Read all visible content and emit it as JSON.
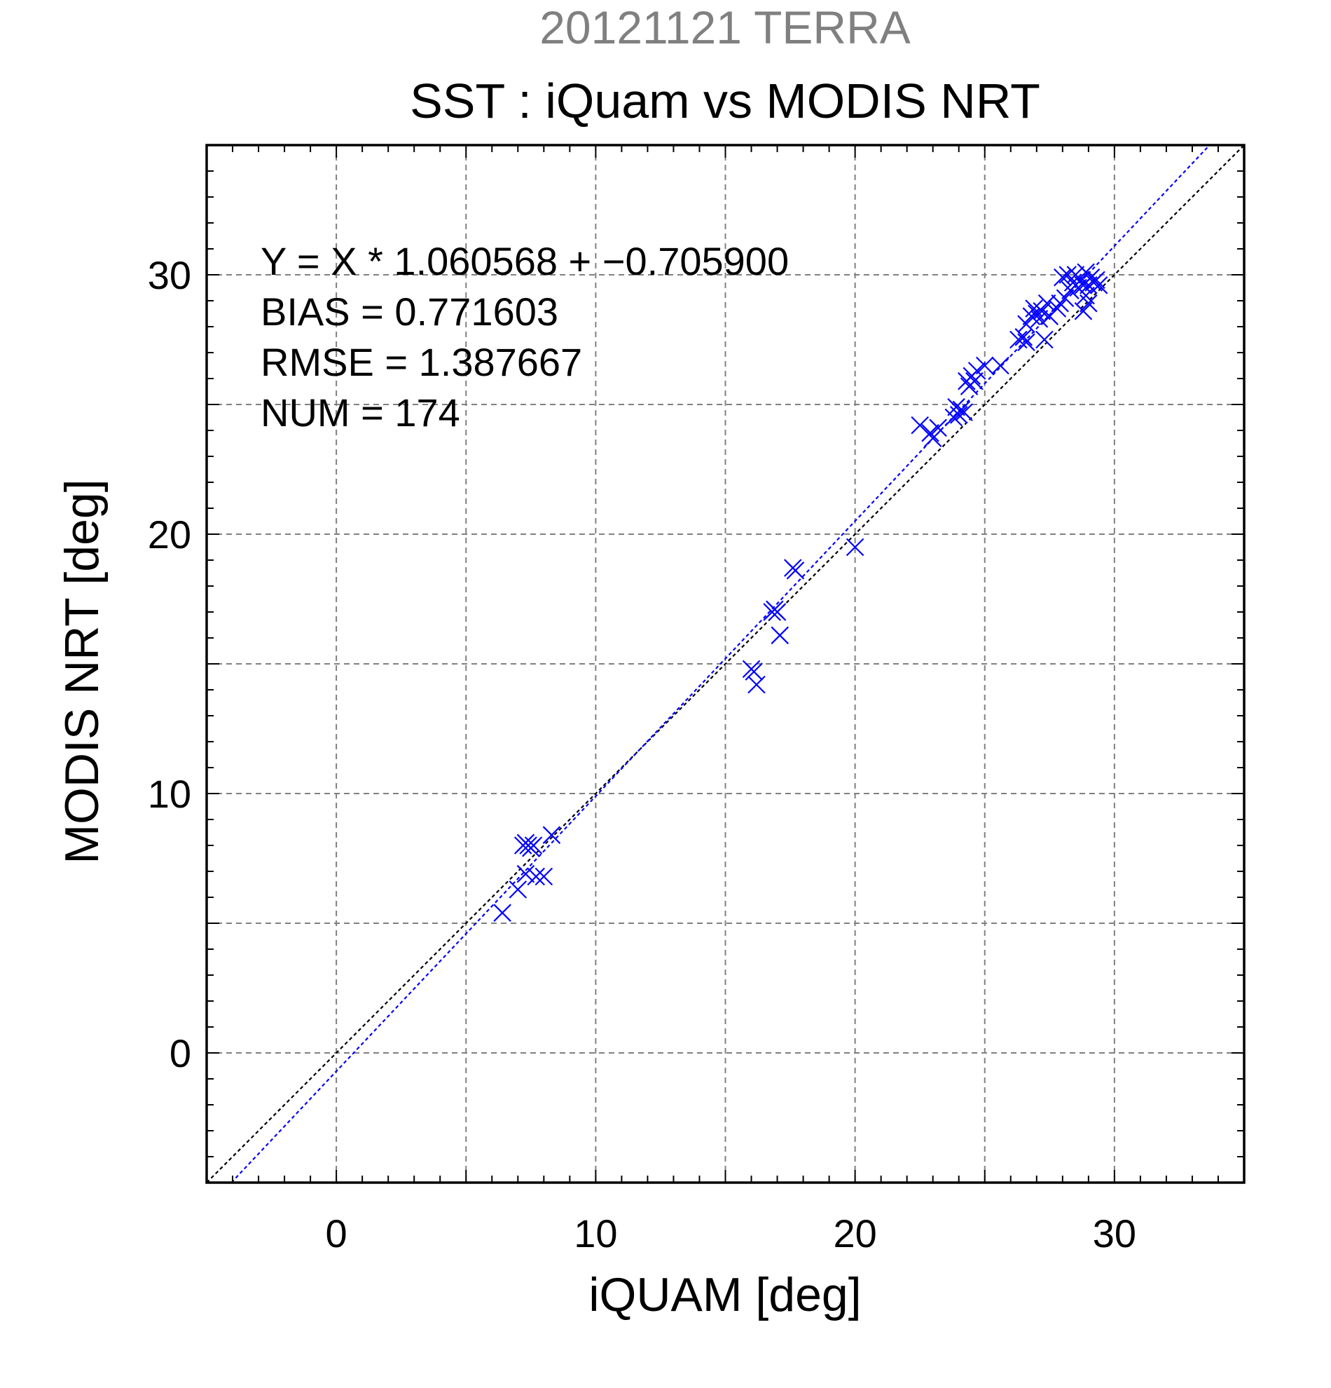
{
  "chart_data": {
    "type": "scatter",
    "title": "20121121 TERRA",
    "subtitle": "SST : iQuam vs MODIS NRT",
    "xlabel": "iQUAM [deg]",
    "ylabel": "MODIS NRT [deg]",
    "xlim": [
      -5,
      35
    ],
    "ylim": [
      -5,
      35
    ],
    "xticks": [
      0,
      10,
      20,
      30
    ],
    "yticks": [
      0,
      10,
      20,
      30
    ],
    "grid": true,
    "annotations": [
      "Y = X * 1.060568 + −0.705900",
      "BIAS = 0.771603",
      "RMSE = 1.387667",
      "NUM = 174"
    ],
    "regression": {
      "slope": 1.060568,
      "intercept": -0.7059
    },
    "colors": {
      "title": "#808080",
      "series": "#0000ff",
      "reference": "#000000",
      "grid": "#808080"
    },
    "series": [
      {
        "marker": "x",
        "points": [
          [
            6.4,
            5.4
          ],
          [
            7.0,
            6.3
          ],
          [
            7.3,
            6.9
          ],
          [
            7.7,
            6.8
          ],
          [
            8.0,
            6.8
          ],
          [
            7.2,
            8.0
          ],
          [
            7.3,
            8.1
          ],
          [
            7.4,
            8.0
          ],
          [
            7.5,
            7.9
          ],
          [
            7.6,
            8.0
          ],
          [
            8.3,
            8.4
          ],
          [
            16.0,
            14.8
          ],
          [
            16.1,
            14.7
          ],
          [
            16.2,
            14.2
          ],
          [
            16.8,
            17.0
          ],
          [
            16.9,
            17.1
          ],
          [
            17.0,
            17.0
          ],
          [
            17.1,
            16.1
          ],
          [
            17.6,
            18.7
          ],
          [
            17.7,
            18.6
          ],
          [
            20.0,
            19.5
          ],
          [
            22.5,
            24.2
          ],
          [
            22.9,
            23.9
          ],
          [
            23.0,
            23.7
          ],
          [
            23.2,
            24.1
          ],
          [
            23.8,
            24.5
          ],
          [
            23.9,
            24.9
          ],
          [
            24.0,
            24.6
          ],
          [
            24.1,
            24.8
          ],
          [
            24.2,
            24.7
          ],
          [
            24.3,
            25.9
          ],
          [
            24.4,
            25.7
          ],
          [
            24.5,
            26.1
          ],
          [
            24.6,
            25.9
          ],
          [
            24.7,
            26.3
          ],
          [
            25.0,
            26.5
          ],
          [
            25.6,
            26.5
          ],
          [
            26.3,
            27.5
          ],
          [
            26.5,
            27.6
          ],
          [
            26.6,
            27.4
          ],
          [
            26.6,
            28.1
          ],
          [
            26.8,
            28.4
          ],
          [
            26.9,
            28.7
          ],
          [
            27.0,
            28.5
          ],
          [
            27.1,
            28.3
          ],
          [
            27.2,
            28.6
          ],
          [
            27.3,
            27.5
          ],
          [
            27.4,
            28.9
          ],
          [
            27.5,
            28.4
          ],
          [
            27.8,
            28.7
          ],
          [
            27.9,
            28.9
          ],
          [
            28.0,
            29.9
          ],
          [
            28.1,
            29.1
          ],
          [
            28.2,
            30.0
          ],
          [
            28.3,
            29.4
          ],
          [
            28.4,
            29.7
          ],
          [
            28.5,
            30.0
          ],
          [
            28.6,
            29.5
          ],
          [
            28.7,
            29.8
          ],
          [
            28.8,
            29.6
          ],
          [
            28.8,
            28.6
          ],
          [
            28.9,
            29.2
          ],
          [
            28.9,
            30.1
          ],
          [
            29.0,
            29.6
          ],
          [
            29.0,
            28.9
          ],
          [
            29.1,
            29.9
          ],
          [
            29.2,
            29.7
          ],
          [
            29.3,
            29.8
          ],
          [
            29.4,
            29.6
          ]
        ]
      }
    ]
  }
}
